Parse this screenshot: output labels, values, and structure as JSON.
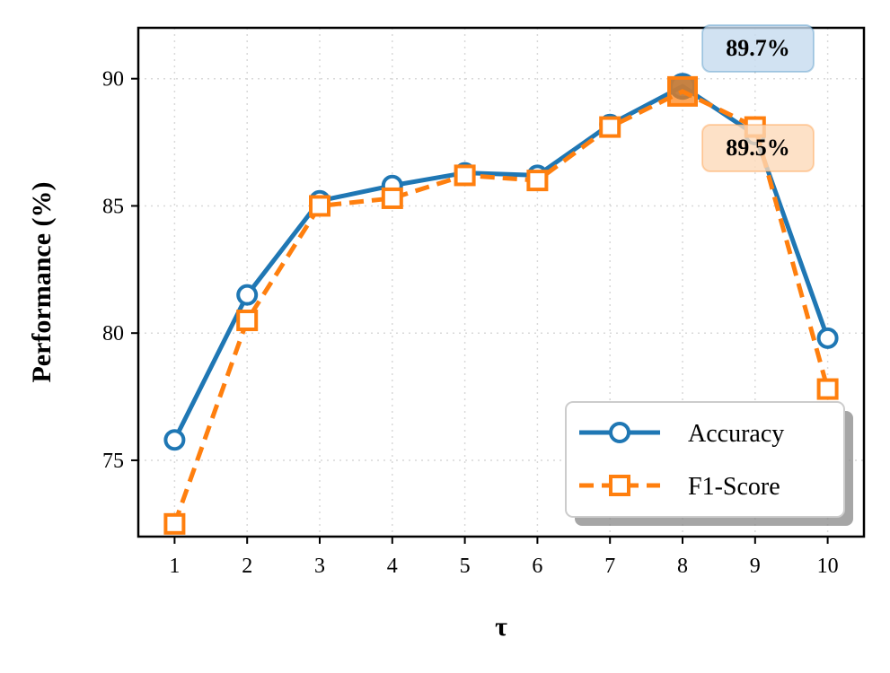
{
  "chart_data": {
    "type": "line",
    "x": [
      1,
      2,
      3,
      4,
      5,
      6,
      7,
      8,
      9,
      10
    ],
    "xticks": [
      "1",
      "2",
      "3",
      "4",
      "5",
      "6",
      "7",
      "8",
      "9",
      "10"
    ],
    "yticks": [
      "75",
      "80",
      "85",
      "90"
    ],
    "xlabel": "τ",
    "ylabel": "Performance (%)",
    "xlim": [
      0.5,
      10.5
    ],
    "ylim": [
      72,
      92
    ],
    "grid": true,
    "legend_position": "lower-right",
    "series": [
      {
        "name": "Accuracy",
        "color": "#1f77b4",
        "line_style": "solid",
        "marker": "circle",
        "values": [
          75.8,
          81.5,
          85.2,
          85.8,
          86.3,
          86.2,
          88.2,
          89.7,
          87.8,
          79.8
        ]
      },
      {
        "name": "F1-Score",
        "color": "#ff7f0e",
        "line_style": "dashed",
        "marker": "square",
        "values": [
          72.5,
          80.5,
          85.0,
          85.3,
          86.2,
          86.0,
          88.1,
          89.5,
          88.1,
          77.8
        ]
      }
    ],
    "annotations": [
      {
        "text": "89.7%",
        "x": 8,
        "series": "Accuracy",
        "box_color": "#c6dbef"
      },
      {
        "text": "89.5%",
        "x": 8,
        "series": "F1-Score",
        "box_color": "#fdd9b9"
      }
    ]
  }
}
